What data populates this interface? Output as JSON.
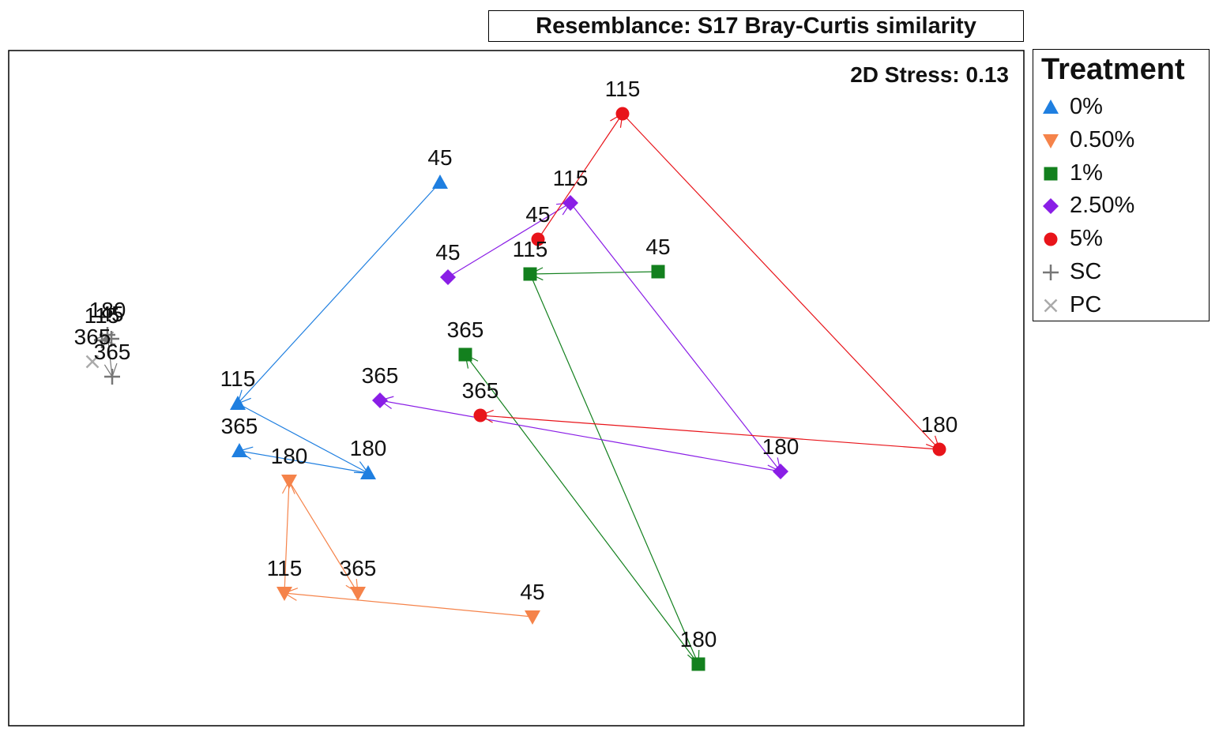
{
  "chart_data": {
    "type": "scatter",
    "title": "Resemblance: S17 Bray-Curtis similarity",
    "annotation": "2D Stress: 0.13",
    "xlabel": "",
    "ylabel": "",
    "xlim": [
      0,
      1285
    ],
    "ylim": [
      0,
      855
    ],
    "grid": false,
    "legend_title": "Treatment",
    "legend_position": "right",
    "series": [
      {
        "name": "0%",
        "marker": "triangle-up",
        "color": "#1f7fe0",
        "points": [
          {
            "label": "45",
            "x": 546,
            "y": 688
          },
          {
            "label": "115",
            "x": 290,
            "y": 408
          },
          {
            "label": "180",
            "x": 455,
            "y": 320
          },
          {
            "label": "365",
            "x": 292,
            "y": 348
          }
        ]
      },
      {
        "name": "0.50%",
        "marker": "triangle-down",
        "color": "#f5834a",
        "points": [
          {
            "label": "180",
            "x": 355,
            "y": 310
          },
          {
            "label": "115",
            "x": 349,
            "y": 168
          },
          {
            "label": "365",
            "x": 442,
            "y": 168
          },
          {
            "label": "45",
            "x": 663,
            "y": 138
          }
        ]
      },
      {
        "name": "1%",
        "marker": "square",
        "color": "#13801e",
        "points": [
          {
            "label": "115",
            "x": 660,
            "y": 572
          },
          {
            "label": "45",
            "x": 822,
            "y": 575
          },
          {
            "label": "365",
            "x": 578,
            "y": 470
          },
          {
            "label": "180",
            "x": 873,
            "y": 78
          }
        ]
      },
      {
        "name": "2.50%",
        "marker": "diamond",
        "color": "#8a1ee6",
        "points": [
          {
            "label": "115",
            "x": 711,
            "y": 662
          },
          {
            "label": "45",
            "x": 556,
            "y": 568
          },
          {
            "label": "365",
            "x": 470,
            "y": 412
          },
          {
            "label": "180",
            "x": 977,
            "y": 322
          }
        ]
      },
      {
        "name": "5%",
        "marker": "circle",
        "color": "#e8141a",
        "points": [
          {
            "label": "115",
            "x": 777,
            "y": 775
          },
          {
            "label": "45",
            "x": 670,
            "y": 616
          },
          {
            "label": "365",
            "x": 597,
            "y": 393
          },
          {
            "label": "180",
            "x": 1178,
            "y": 350
          }
        ]
      },
      {
        "name": "SC",
        "marker": "plus",
        "color": "#777777",
        "points": [
          {
            "label": "180",
            "x": 125,
            "y": 495
          },
          {
            "label": "115",
            "x": 118,
            "y": 488
          },
          {
            "label": "45",
            "x": 130,
            "y": 490
          },
          {
            "label": "365",
            "x": 131,
            "y": 442
          }
        ]
      },
      {
        "name": "PC",
        "marker": "cross",
        "color": "#aaaaaa",
        "points": [
          {
            "label": "365",
            "x": 106,
            "y": 461
          }
        ]
      }
    ]
  }
}
